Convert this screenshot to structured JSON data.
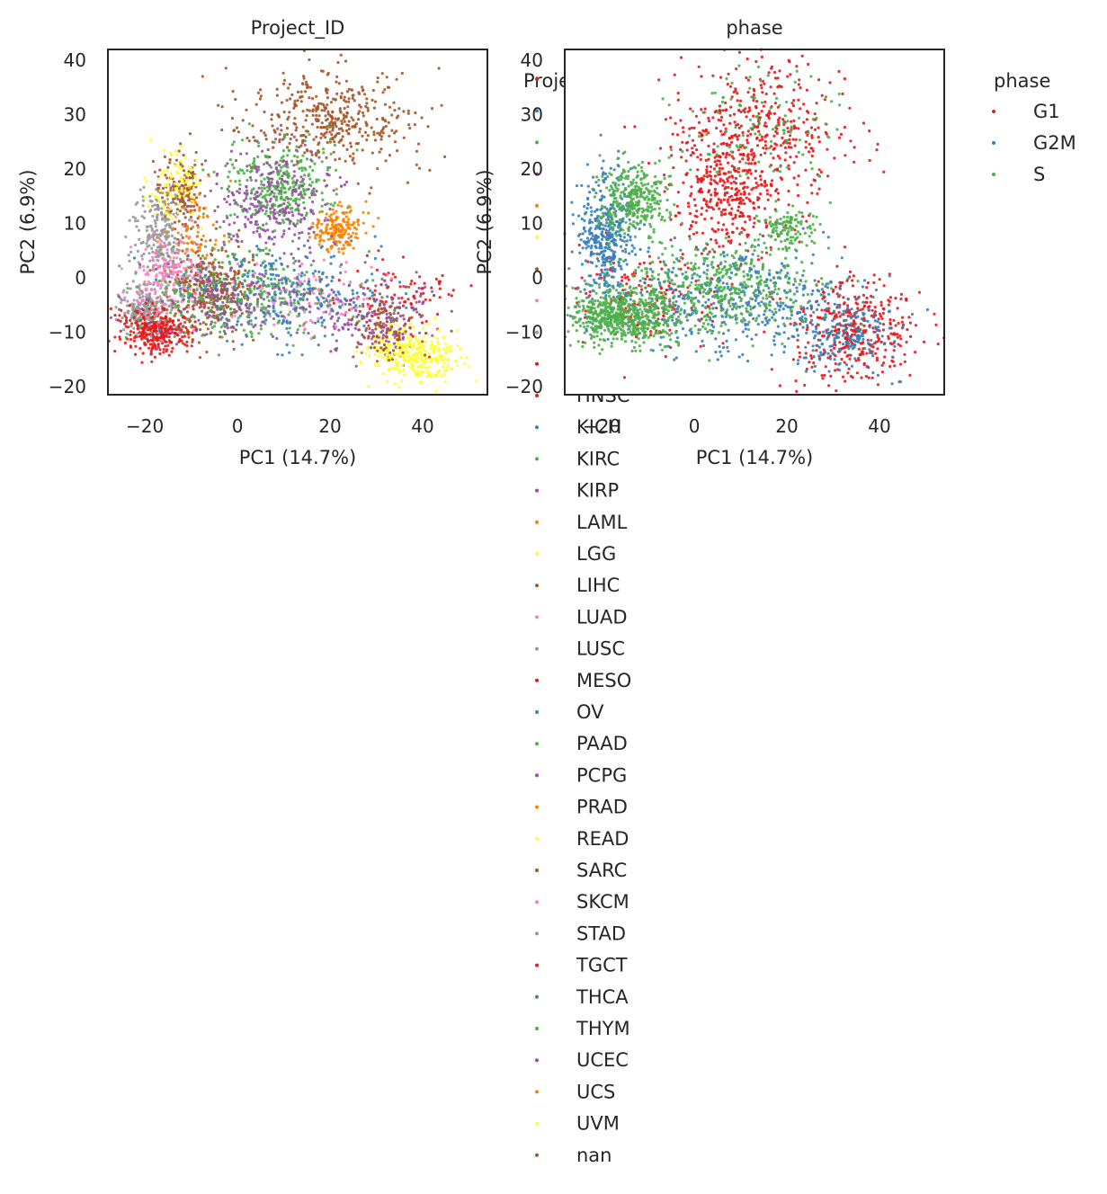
{
  "chart_data": [
    {
      "type": "scatter",
      "title": "Project_ID",
      "xlabel": "PC1 (14.7%)",
      "ylabel": "PC2 (6.9%)",
      "xlim": [
        -28,
        54
      ],
      "ylim": [
        -21.5,
        42
      ],
      "xticks": [
        -20,
        0,
        20,
        40
      ],
      "yticks": [
        -20,
        -10,
        0,
        10,
        20,
        30,
        40
      ],
      "xtick_labels": [
        "−20",
        "0",
        "20",
        "40"
      ],
      "ytick_labels": [
        "−20",
        "−10",
        "0",
        "10",
        "20",
        "30",
        "40"
      ],
      "grid": false,
      "legend": {
        "title": "Project_ID",
        "placement": "outside-right",
        "visible_entries": [
          {
            "label": "HNSC",
            "color": "#e41a1c"
          },
          {
            "label": "KICH",
            "color": "#377eb8"
          },
          {
            "label": "KIRC",
            "color": "#4daf4a"
          },
          {
            "label": "KIRP",
            "color": "#984ea3"
          },
          {
            "label": "LAML",
            "color": "#ff7f00"
          },
          {
            "label": "LGG",
            "color": "#ffff33"
          },
          {
            "label": "LIHC",
            "color": "#a65628"
          },
          {
            "label": "LUAD",
            "color": "#f781bf"
          },
          {
            "label": "LUSC",
            "color": "#999999"
          },
          {
            "label": "MESO",
            "color": "#e41a1c"
          },
          {
            "label": "OV",
            "color": "#377eb8"
          },
          {
            "label": "PAAD",
            "color": "#4daf4a"
          },
          {
            "label": "PCPG",
            "color": "#984ea3"
          },
          {
            "label": "PRAD",
            "color": "#ff7f00"
          },
          {
            "label": "READ",
            "color": "#ffff33"
          },
          {
            "label": "SARC",
            "color": "#a65628"
          },
          {
            "label": "SKCM",
            "color": "#f781bf"
          },
          {
            "label": "STAD",
            "color": "#999999"
          },
          {
            "label": "TGCT",
            "color": "#e41a1c"
          },
          {
            "label": "THCA",
            "color": "#377eb8"
          },
          {
            "label": "THYM",
            "color": "#4daf4a"
          },
          {
            "label": "UCEC",
            "color": "#984ea3"
          },
          {
            "label": "UCS",
            "color": "#ff7f00"
          },
          {
            "label": "UVM",
            "color": "#ffff33"
          },
          {
            "label": "nan",
            "color": "#a65628"
          }
        ],
        "hidden_entry_colors": [
          "#e41a1c",
          "#377eb8",
          "#4daf4a",
          "#984ea3",
          "#ff7f00",
          "#ffff33",
          "#a65628",
          "#f781bf",
          "#999999",
          "#e41a1c"
        ]
      },
      "clusters": [
        {
          "color": "#a65628",
          "cx": 20,
          "cy": 29,
          "sx": 9,
          "sy": 4.5,
          "n": 420
        },
        {
          "color": "#a65628",
          "cx": -12,
          "cy": 16,
          "sx": 2.5,
          "sy": 3.5,
          "n": 160
        },
        {
          "color": "#a65628",
          "cx": -6,
          "cy": -2,
          "sx": 5,
          "sy": 4,
          "n": 380
        },
        {
          "color": "#999999",
          "cx": -17,
          "cy": 8,
          "sx": 2.5,
          "sy": 4,
          "n": 220
        },
        {
          "color": "#999999",
          "cx": -20,
          "cy": -6,
          "sx": 2.5,
          "sy": 2.5,
          "n": 230
        },
        {
          "color": "#e41a1c",
          "cx": -18,
          "cy": -10,
          "sx": 4,
          "sy": 2,
          "n": 300
        },
        {
          "color": "#e41a1c",
          "cx": 35,
          "cy": -4,
          "sx": 6,
          "sy": 4,
          "n": 110
        },
        {
          "color": "#4daf4a",
          "cx": 9,
          "cy": 17,
          "sx": 6,
          "sy": 4,
          "n": 320
        },
        {
          "color": "#984ea3",
          "cx": 8,
          "cy": 14,
          "sx": 6,
          "sy": 5,
          "n": 260
        },
        {
          "color": "#984ea3",
          "cx": 30,
          "cy": -8,
          "sx": 6,
          "sy": 4,
          "n": 150
        },
        {
          "color": "#ff7f00",
          "cx": 22,
          "cy": 9,
          "sx": 3,
          "sy": 2,
          "n": 170
        },
        {
          "color": "#ff7f00",
          "cx": -9,
          "cy": 10,
          "sx": 3,
          "sy": 4,
          "n": 60
        },
        {
          "color": "#ffff33",
          "cx": 38,
          "cy": -14,
          "sx": 5,
          "sy": 2.5,
          "n": 320
        },
        {
          "color": "#ffff33",
          "cx": -13,
          "cy": 17,
          "sx": 3,
          "sy": 4,
          "n": 90
        },
        {
          "color": "#f781bf",
          "cx": -15,
          "cy": 0,
          "sx": 4,
          "sy": 4,
          "n": 200
        },
        {
          "color": "#f781bf",
          "cx": 15,
          "cy": -3,
          "sx": 8,
          "sy": 3,
          "n": 130
        },
        {
          "color": "#377eb8",
          "cx": 10,
          "cy": -3,
          "sx": 12,
          "sy": 4,
          "n": 330
        },
        {
          "color": "#4daf4a",
          "cx": 0,
          "cy": -3,
          "sx": 12,
          "sy": 4,
          "n": 260
        },
        {
          "color": "#984ea3",
          "cx": -2,
          "cy": -4,
          "sx": 9,
          "sy": 3,
          "n": 120
        },
        {
          "color": "#a65628",
          "cx": 32,
          "cy": -9,
          "sx": 4,
          "sy": 3,
          "n": 90
        }
      ]
    },
    {
      "type": "scatter",
      "title": "phase",
      "xlabel": "PC1 (14.7%)",
      "ylabel": "PC2 (6.9%)",
      "xlim": [
        -28,
        54
      ],
      "ylim": [
        -21.5,
        42
      ],
      "xticks": [
        -20,
        0,
        20,
        40
      ],
      "yticks": [
        -20,
        -10,
        0,
        10,
        20,
        30,
        40
      ],
      "xtick_labels": [
        "−20",
        "0",
        "20",
        "40"
      ],
      "ytick_labels": [
        "−20",
        "−10",
        "0",
        "10",
        "20",
        "30",
        "40"
      ],
      "grid": false,
      "legend": {
        "title": "phase",
        "placement": "outside-right",
        "entries": [
          {
            "label": "G1",
            "color": "#e41a1c"
          },
          {
            "label": "G2M",
            "color": "#377eb8"
          },
          {
            "label": "S",
            "color": "#4daf4a"
          }
        ]
      },
      "clusters": [
        {
          "color": "#e41a1c",
          "cx": 14,
          "cy": 27,
          "sx": 9,
          "sy": 6,
          "n": 420
        },
        {
          "color": "#e41a1c",
          "cx": 8,
          "cy": 15,
          "sx": 6,
          "sy": 5,
          "n": 320
        },
        {
          "color": "#e41a1c",
          "cx": 35,
          "cy": -10,
          "sx": 7,
          "sy": 5,
          "n": 380
        },
        {
          "color": "#e41a1c",
          "cx": -10,
          "cy": -4,
          "sx": 10,
          "sy": 5,
          "n": 160
        },
        {
          "color": "#377eb8",
          "cx": -19,
          "cy": 8,
          "sx": 3,
          "sy": 6,
          "n": 380
        },
        {
          "color": "#377eb8",
          "cx": 10,
          "cy": -4,
          "sx": 14,
          "sy": 5,
          "n": 450
        },
        {
          "color": "#377eb8",
          "cx": 32,
          "cy": -11,
          "sx": 5,
          "sy": 3,
          "n": 160
        },
        {
          "color": "#4daf4a",
          "cx": -13,
          "cy": 14,
          "sx": 4,
          "sy": 3.5,
          "n": 320
        },
        {
          "color": "#4daf4a",
          "cx": -16,
          "cy": -7,
          "sx": 6,
          "sy": 2.5,
          "n": 620
        },
        {
          "color": "#4daf4a",
          "cx": 5,
          "cy": -2,
          "sx": 10,
          "sy": 4,
          "n": 420
        },
        {
          "color": "#4daf4a",
          "cx": 20,
          "cy": 9,
          "sx": 3,
          "sy": 2,
          "n": 120
        },
        {
          "color": "#4daf4a",
          "cx": 14,
          "cy": 28,
          "sx": 8,
          "sy": 6,
          "n": 110
        }
      ]
    }
  ]
}
